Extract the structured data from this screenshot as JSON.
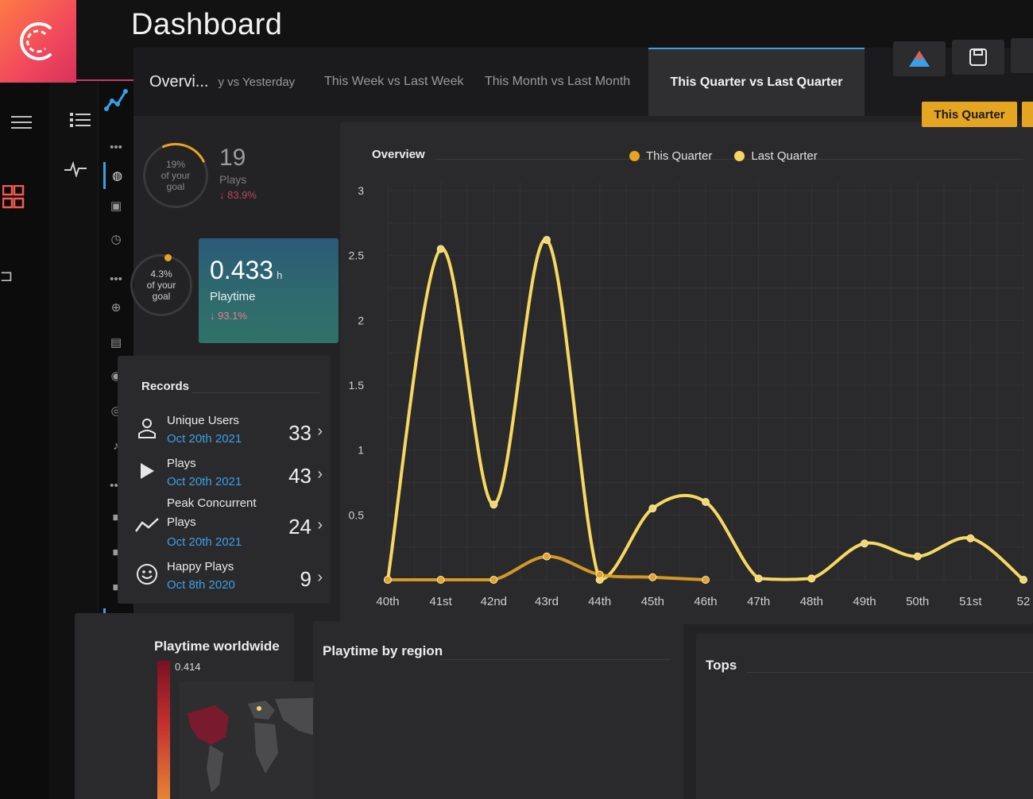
{
  "header": {
    "title": "Dashboard"
  },
  "tabs": {
    "overview": "Overvi...",
    "overview_sub": "y vs Yesterday",
    "week": "This Week vs Last Week",
    "month": "This Month vs Last Month",
    "quarter": "This Quarter vs Last Quarter"
  },
  "stats": {
    "plays_ring": {
      "percent": "19%",
      "line1": "of your",
      "line2": "goal"
    },
    "plays": {
      "value": "19",
      "label": "Plays",
      "delta": "↓ 83.9%"
    },
    "playtime_ring": {
      "percent": "4.3%",
      "line1": "of your",
      "line2": "goal"
    },
    "playtime": {
      "value": "0.433",
      "unit": "h",
      "label": "Playtime",
      "delta": "↓ 93.1%"
    }
  },
  "records": {
    "title": "Records",
    "items": [
      {
        "name": "Unique Users",
        "date": "Oct 20th 2021",
        "value": "33",
        "icon": "user-icon"
      },
      {
        "name": "Plays",
        "date": "Oct 20th 2021",
        "value": "43",
        "icon": "play-icon"
      },
      {
        "name_line1": "Peak Concurrent",
        "name_line2": "Plays",
        "date": "Oct 20th 2021",
        "value": "24",
        "icon": "trend-icon"
      },
      {
        "name": "Happy Plays",
        "date": "Oct 8th 2020",
        "value": "9",
        "icon": "smile-icon"
      }
    ]
  },
  "overview": {
    "title": "Overview",
    "quarter_button": "This Quarter"
  },
  "chart_data": {
    "type": "line",
    "title": "Overview",
    "categories": [
      "40th",
      "41st",
      "42nd",
      "43rd",
      "44th",
      "45th",
      "46th",
      "47th",
      "48th",
      "49th",
      "50th",
      "51st",
      "52"
    ],
    "yticks": [
      "3",
      "2.5",
      "2",
      "1.5",
      "1",
      "0.5"
    ],
    "ylim": [
      0,
      3
    ],
    "series": [
      {
        "name": "This Quarter",
        "color": "#e6a423",
        "values": [
          0.0,
          0.0,
          0.0,
          0.18,
          0.04,
          0.02,
          0.0,
          null,
          null,
          null,
          null,
          null,
          null
        ]
      },
      {
        "name": "Last Quarter",
        "color": "#f6d860",
        "values": [
          0.0,
          2.55,
          0.58,
          2.62,
          0.0,
          0.55,
          0.6,
          0.01,
          0.01,
          0.28,
          0.18,
          0.32,
          0.0
        ]
      }
    ],
    "legend": "top-center",
    "grid": true
  },
  "panels": {
    "worldwide": {
      "title": "Playtime worldwide",
      "scale_max": "0.414"
    },
    "region": {
      "title": "Playtime by region"
    },
    "tops": {
      "title": "Tops"
    }
  }
}
